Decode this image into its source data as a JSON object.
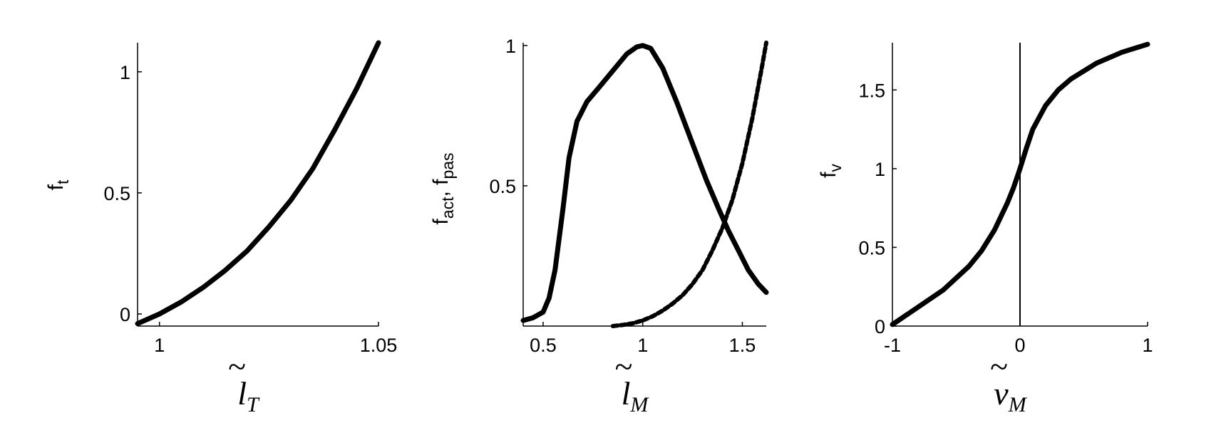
{
  "chart_data": [
    {
      "type": "line",
      "xlabel": {
        "base": "l",
        "tilde": "~",
        "subscript": "T"
      },
      "ylabel": {
        "base": "f",
        "subscript": "t"
      },
      "xlim": [
        0.995,
        1.05
      ],
      "ylim": [
        -0.05,
        1.12
      ],
      "xticks": [
        1,
        1.05
      ],
      "xtick_labels": [
        "1",
        "1.05"
      ],
      "yticks": [
        0,
        0.5,
        1
      ],
      "ytick_labels": [
        "0",
        "0.5",
        "1"
      ],
      "grid": false,
      "series": [
        {
          "style": "solid",
          "x": [
            0.995,
            1.0,
            1.005,
            1.01,
            1.015,
            1.02,
            1.025,
            1.03,
            1.035,
            1.04,
            1.045,
            1.05
          ],
          "y": [
            -0.04,
            0.0,
            0.05,
            0.11,
            0.18,
            0.26,
            0.36,
            0.47,
            0.6,
            0.76,
            0.93,
            1.12
          ]
        }
      ]
    },
    {
      "type": "line",
      "xlabel": {
        "base": "l",
        "tilde": "~",
        "subscript": "M"
      },
      "ylabel": {
        "base": "f",
        "subscript": "act",
        "base2": "f",
        "subscript2": "pas"
      },
      "xlim": [
        0.4,
        1.62
      ],
      "ylim": [
        0,
        1.01
      ],
      "xticks": [
        0.5,
        1,
        1.5
      ],
      "xtick_labels": [
        "0.5",
        "1",
        "1.5"
      ],
      "yticks": [
        0.5,
        1
      ],
      "ytick_labels": [
        "0.5",
        "1"
      ],
      "grid": false,
      "series": [
        {
          "style": "solid",
          "x": [
            0.4,
            0.45,
            0.5,
            0.53,
            0.56,
            0.6,
            0.63,
            0.67,
            0.72,
            0.78,
            0.85,
            0.92,
            0.97,
            1.0,
            1.04,
            1.1,
            1.17,
            1.25,
            1.32,
            1.38,
            1.43,
            1.48,
            1.53,
            1.58,
            1.62
          ],
          "y": [
            0.02,
            0.03,
            0.05,
            0.1,
            0.2,
            0.42,
            0.6,
            0.73,
            0.8,
            0.85,
            0.91,
            0.97,
            0.995,
            1.0,
            0.99,
            0.92,
            0.8,
            0.65,
            0.52,
            0.42,
            0.34,
            0.27,
            0.2,
            0.15,
            0.12
          ]
        },
        {
          "style": "dashed",
          "x": [
            0.85,
            0.9,
            0.95,
            1.0,
            1.05,
            1.1,
            1.15,
            1.2,
            1.25,
            1.3,
            1.35,
            1.4,
            1.45,
            1.5,
            1.55,
            1.6,
            1.62
          ],
          "y": [
            0.0,
            0.004,
            0.01,
            0.02,
            0.035,
            0.055,
            0.08,
            0.11,
            0.15,
            0.2,
            0.27,
            0.35,
            0.45,
            0.58,
            0.74,
            0.93,
            1.01
          ]
        }
      ]
    },
    {
      "type": "line",
      "xlabel": {
        "base": "v",
        "tilde": "~",
        "subscript": "M"
      },
      "ylabel": {
        "base": "f",
        "subscript": "v"
      },
      "xlim": [
        -1,
        1
      ],
      "ylim": [
        0,
        1.8
      ],
      "xticks": [
        -1,
        0,
        1
      ],
      "xtick_labels": [
        "-1",
        "0",
        "1"
      ],
      "yticks": [
        0,
        0.5,
        1,
        1.5
      ],
      "ytick_labels": [
        "0",
        "0.5",
        "1",
        "1.5"
      ],
      "grid": false,
      "vertical_reference_line_x": 0,
      "series": [
        {
          "style": "solid",
          "x": [
            -1,
            -0.8,
            -0.6,
            -0.4,
            -0.3,
            -0.2,
            -0.1,
            -0.05,
            0,
            0.05,
            0.1,
            0.2,
            0.3,
            0.4,
            0.6,
            0.8,
            1
          ],
          "y": [
            0.01,
            0.12,
            0.23,
            0.38,
            0.48,
            0.61,
            0.78,
            0.88,
            1.0,
            1.13,
            1.25,
            1.4,
            1.5,
            1.57,
            1.67,
            1.74,
            1.79
          ]
        }
      ]
    }
  ]
}
